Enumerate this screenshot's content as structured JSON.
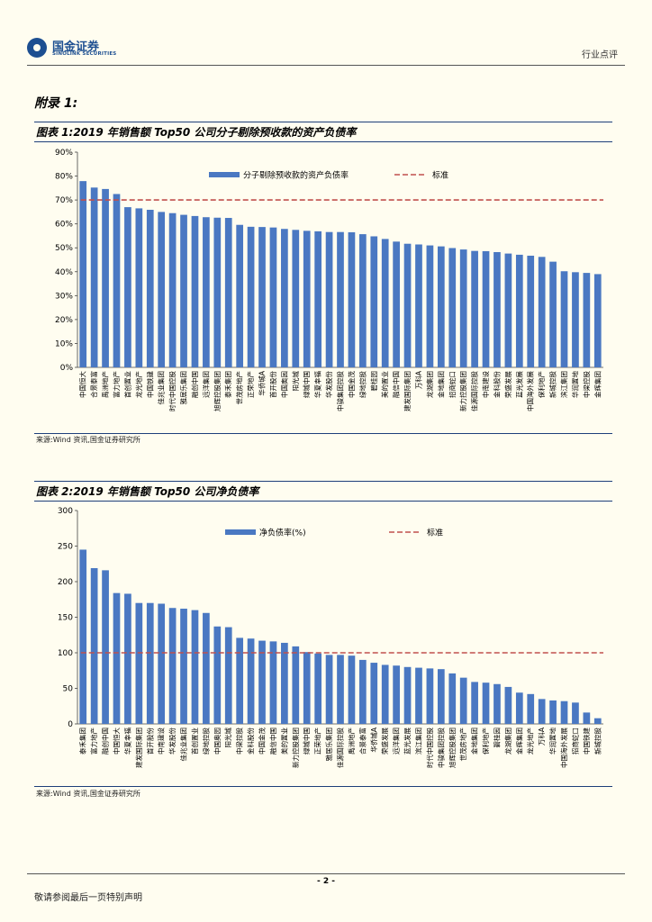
{
  "header": {
    "brand_cn": "国金证券",
    "brand_en": "SINOLINK SECURITIES",
    "section": "行业点评"
  },
  "appendix_title": "附录 1:",
  "figure1": {
    "title": "图表 1:2019 年销售额 Top50 公司分子剔除预收款的资产负债率",
    "source": "来源:Wind 资讯,国金证券研究所"
  },
  "figure2": {
    "title": "图表 2:2019 年销售额 Top50 公司净负债率",
    "source": "来源:Wind 资讯,国金证券研究所"
  },
  "footer": {
    "page": "- 2 -",
    "disclaimer": "敬请参阅最后一页特别声明"
  },
  "colors": {
    "bar": "#4a78c2",
    "benchmark": "#c0504d",
    "rule": "#1e3f7a"
  },
  "chart_data": [
    {
      "type": "bar",
      "title": "2019 年销售额 Top50 公司分子剔除预收款的资产负债率",
      "series_name": "分子剔除预收款的资产负债率",
      "benchmark_name": "标准",
      "benchmark": 70,
      "ylim": [
        0,
        90
      ],
      "yticks": [
        0,
        10,
        20,
        30,
        40,
        50,
        60,
        70,
        80,
        90
      ],
      "ytick_labels": [
        "0%",
        "10%",
        "20%",
        "30%",
        "40%",
        "50%",
        "60%",
        "70%",
        "80%",
        "90%"
      ],
      "categories": [
        "中国恒大",
        "合景泰富",
        "禹洲地产",
        "富力地产",
        "首创置业",
        "龙光地产",
        "中国铁建",
        "佳兆业集团",
        "时代中国控股",
        "雅居乐集团",
        "融创中国",
        "远洋集团",
        "旭辉控股集团",
        "泰禾集团",
        "世茂房地产",
        "正荣地产",
        "华侨城A",
        "首开股份",
        "中国奥园",
        "阳光城",
        "绿城中国",
        "华夏幸福",
        "华发股份",
        "中骏集团控股",
        "中国金茂",
        "绿地控股",
        "碧桂园",
        "美的置业",
        "融信中国",
        "建发国际集团",
        "万科A",
        "龙湖集团",
        "金地集团",
        "招商蛇口",
        "新力控股集团",
        "佳源国际控股",
        "中南建设",
        "金科股份",
        "荣盛发展",
        "蓝光发展",
        "中国海外发展",
        "保利地产",
        "新城控股",
        "滨江集团",
        "华润置地",
        "中梁控股",
        "金辉集团"
      ],
      "values": [
        77.9,
        75.2,
        74.6,
        72.5,
        67.0,
        66.5,
        65.9,
        65.0,
        64.5,
        63.8,
        63.3,
        62.8,
        62.6,
        62.5,
        59.6,
        58.8,
        58.7,
        58.5,
        57.9,
        57.5,
        57.1,
        56.9,
        56.6,
        56.6,
        56.5,
        55.7,
        54.8,
        53.7,
        52.6,
        51.7,
        51.4,
        51.0,
        50.6,
        49.9,
        49.3,
        48.7,
        48.6,
        48.2,
        47.6,
        47.1,
        46.7,
        46.2,
        44.2,
        40.2,
        39.8,
        39.5,
        39.0
      ]
    },
    {
      "type": "bar",
      "title": "2019 年销售额 Top50 公司净负债率",
      "series_name": "净负债率(%)",
      "benchmark_name": "标准",
      "benchmark": 100,
      "ylim": [
        0,
        300
      ],
      "yticks": [
        0,
        50,
        100,
        150,
        200,
        250,
        300
      ],
      "ytick_labels": [
        "0",
        "50",
        "100",
        "150",
        "200",
        "250",
        "300"
      ],
      "categories": [
        "泰禾集团",
        "富力地产",
        "融创中国",
        "中国恒大",
        "华夏幸福",
        "建发国际集团",
        "首开股份",
        "中南建设",
        "华发股份",
        "佳兆业集团",
        "首创置业",
        "绿地控股",
        "中国奥园",
        "阳光城",
        "中梁控股",
        "金科股份",
        "中国金茂",
        "融信中国",
        "美的置业",
        "新力控股集团",
        "绿城中国",
        "正荣地产",
        "雅居乐集团",
        "佳源国际控股",
        "禹洲地产",
        "合景泰富",
        "华侨城A",
        "荣盛发展",
        "远洋集团",
        "蓝光发展",
        "滨江集团",
        "时代中国控股",
        "中骏集团控股",
        "旭辉控股集团",
        "世茂房地产",
        "金地集团",
        "保利地产",
        "碧桂园",
        "龙湖集团",
        "金辉集团",
        "龙光地产",
        "万科A",
        "华润置地",
        "中国海外发展",
        "招商蛇口",
        "中国铁建",
        "新城控股"
      ],
      "values": [
        245,
        219,
        216,
        184,
        183,
        170,
        170,
        169,
        163,
        162,
        160,
        156,
        137,
        136,
        121,
        120,
        117,
        116,
        114,
        109,
        101,
        99,
        97,
        97,
        96,
        90,
        86,
        83,
        82,
        80,
        79,
        78,
        77,
        71,
        65,
        59,
        58,
        56,
        52,
        44,
        42,
        35,
        33,
        32,
        30,
        16,
        8
      ]
    }
  ]
}
